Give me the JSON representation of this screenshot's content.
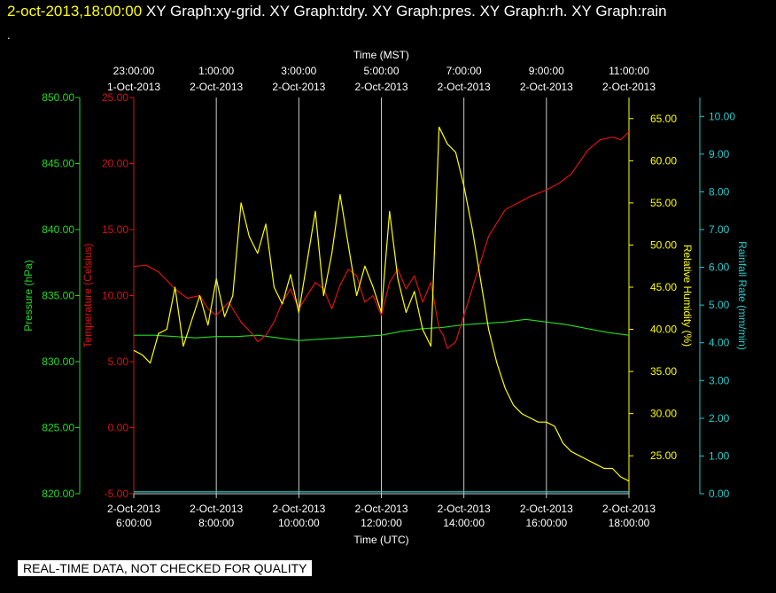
{
  "header": {
    "timestamp": "2-oct-2013,18:00:00",
    "graphs": "XY Graph:xy-grid.  XY Graph:tdry.  XY Graph:pres.  XY Graph:rh.  XY Graph:rain",
    "dot": "."
  },
  "footer": {
    "notice": "REAL-TIME DATA, NOT CHECKED FOR QUALITY"
  },
  "colors": {
    "background": "#000000",
    "pressure": "#22dd22",
    "temperature": "#dd1111",
    "humidity": "#ffff00",
    "rain": "#22cccc",
    "grid": "#cccccc",
    "header_timestamp": "#ffff00"
  },
  "chart_data": {
    "type": "line",
    "top_axis": {
      "title": "Time (MST)",
      "ticks": [
        {
          "hour": 6,
          "time": "23:00:00",
          "date": "1-Oct-2013"
        },
        {
          "hour": 8,
          "time": "1:00:00",
          "date": "2-Oct-2013"
        },
        {
          "hour": 10,
          "time": "3:00:00",
          "date": "2-Oct-2013"
        },
        {
          "hour": 12,
          "time": "5:00:00",
          "date": "2-Oct-2013"
        },
        {
          "hour": 14,
          "time": "7:00:00",
          "date": "2-Oct-2013"
        },
        {
          "hour": 16,
          "time": "9:00:00",
          "date": "2-Oct-2013"
        },
        {
          "hour": 18,
          "time": "11:00:00",
          "date": "2-Oct-2013"
        }
      ]
    },
    "bottom_axis": {
      "title": "Time (UTC)",
      "range": [
        6,
        18
      ],
      "ticks": [
        {
          "hour": 6,
          "date": "2-Oct-2013",
          "time": "6:00:00"
        },
        {
          "hour": 8,
          "date": "2-Oct-2013",
          "time": "8:00:00"
        },
        {
          "hour": 10,
          "date": "2-Oct-2013",
          "time": "10:00:00"
        },
        {
          "hour": 12,
          "date": "2-Oct-2013",
          "time": "12:00:00"
        },
        {
          "hour": 14,
          "date": "2-Oct-2013",
          "time": "14:00:00"
        },
        {
          "hour": 16,
          "date": "2-Oct-2013",
          "time": "16:00:00"
        },
        {
          "hour": 18,
          "date": "2-Oct-2013",
          "time": "18:00:00"
        }
      ]
    },
    "y_axes": {
      "pressure": {
        "label": "Pressure (hPa)",
        "range": [
          820,
          850
        ],
        "ticks": [
          "820.00",
          "825.00",
          "830.00",
          "835.00",
          "840.00",
          "845.00",
          "850.00"
        ]
      },
      "temperature": {
        "label": "Temperature (Celsius)",
        "range": [
          -5,
          25
        ],
        "ticks": [
          "-5.00",
          "0.00",
          "5.00",
          "10.00",
          "15.00",
          "20.00",
          "25.00"
        ]
      },
      "humidity": {
        "label": "Relative Humidity (%)",
        "range": [
          20.5,
          67.5
        ],
        "ticks": [
          "25.00",
          "30.00",
          "35.00",
          "40.00",
          "45.00",
          "50.00",
          "55.00",
          "60.00",
          "65.00"
        ]
      },
      "rain": {
        "label": "Rainfall Rate (mm/min)",
        "range": [
          0,
          10.5
        ],
        "ticks": [
          "0.00",
          "1.00",
          "2.00",
          "3.00",
          "4.00",
          "5.00",
          "6.00",
          "7.00",
          "8.00",
          "9.00",
          "10.00"
        ]
      }
    },
    "grid": true,
    "series": [
      {
        "name": "pres",
        "x": [
          6,
          6.5,
          7,
          7.5,
          8,
          8.5,
          9,
          9.5,
          10,
          10.5,
          11,
          11.5,
          12,
          12.5,
          13,
          13.5,
          14,
          14.5,
          15,
          15.5,
          16,
          16.5,
          17,
          17.5,
          18
        ],
        "y": [
          832.0,
          832.0,
          831.9,
          831.8,
          831.9,
          831.9,
          832.0,
          831.8,
          831.6,
          831.7,
          831.8,
          831.9,
          832.0,
          832.3,
          832.5,
          832.6,
          832.8,
          832.9,
          833.0,
          833.2,
          833.0,
          832.8,
          832.5,
          832.2,
          832.0
        ]
      },
      {
        "name": "tdry",
        "x": [
          6,
          6.3,
          6.6,
          7,
          7.3,
          7.6,
          7.8,
          8,
          8.3,
          8.6,
          8.9,
          9,
          9.2,
          9.4,
          9.6,
          9.8,
          10,
          10.2,
          10.4,
          10.6,
          10.8,
          11,
          11.2,
          11.4,
          11.6,
          11.8,
          12,
          12.2,
          12.4,
          12.6,
          12.8,
          13,
          13.2,
          13.4,
          13.5,
          13.6,
          13.8,
          14,
          14.3,
          14.6,
          15,
          15.3,
          15.6,
          16,
          16.3,
          16.6,
          17,
          17.3,
          17.6,
          17.8,
          18
        ],
        "y": [
          12.2,
          12.3,
          11.8,
          10.5,
          9.8,
          10.0,
          9.0,
          8.5,
          9.5,
          8.0,
          7.0,
          6.5,
          7.0,
          8.0,
          9.5,
          10.5,
          9.0,
          10.0,
          11.0,
          10.5,
          9.0,
          10.8,
          12.0,
          11.5,
          9.5,
          10.0,
          8.5,
          11.0,
          12.0,
          10.5,
          11.5,
          9.5,
          11.0,
          7.5,
          7.0,
          6.0,
          6.5,
          8.5,
          11.5,
          14.5,
          16.5,
          17.0,
          17.5,
          18.0,
          18.5,
          19.2,
          21.0,
          21.8,
          22.0,
          21.8,
          22.4
        ]
      },
      {
        "name": "rh",
        "x": [
          6,
          6.2,
          6.4,
          6.6,
          6.8,
          7,
          7.2,
          7.4,
          7.6,
          7.8,
          8,
          8.2,
          8.4,
          8.6,
          8.8,
          9,
          9.2,
          9.4,
          9.6,
          9.8,
          10,
          10.2,
          10.4,
          10.6,
          10.8,
          11,
          11.2,
          11.4,
          11.6,
          11.8,
          12,
          12.2,
          12.4,
          12.6,
          12.8,
          13,
          13.2,
          13.4,
          13.6,
          13.8,
          14,
          14.2,
          14.4,
          14.6,
          14.8,
          15,
          15.2,
          15.4,
          15.6,
          15.8,
          16,
          16.2,
          16.4,
          16.6,
          16.8,
          17,
          17.2,
          17.4,
          17.6,
          17.8,
          18
        ],
        "y": [
          37.5,
          37.0,
          36.0,
          39.5,
          40.0,
          45.0,
          38.0,
          41.0,
          44.0,
          40.5,
          46.0,
          41.5,
          44.0,
          55.0,
          51.0,
          49.0,
          52.5,
          45.0,
          43.0,
          46.5,
          42.0,
          48.0,
          54.0,
          44.0,
          49.0,
          56.0,
          50.0,
          44.0,
          47.5,
          45.0,
          42.0,
          54.0,
          46.0,
          42.0,
          44.5,
          40.0,
          38.0,
          64.0,
          62.0,
          61.0,
          57.0,
          52.0,
          46.0,
          40.0,
          36.0,
          33.0,
          31.0,
          30.0,
          29.5,
          29.0,
          29.0,
          28.5,
          26.5,
          25.5,
          25.0,
          24.5,
          24.0,
          23.5,
          23.5,
          22.5,
          22.0
        ]
      },
      {
        "name": "rain",
        "x": [
          6,
          18
        ],
        "y": [
          0.05,
          0.05
        ]
      }
    ]
  }
}
